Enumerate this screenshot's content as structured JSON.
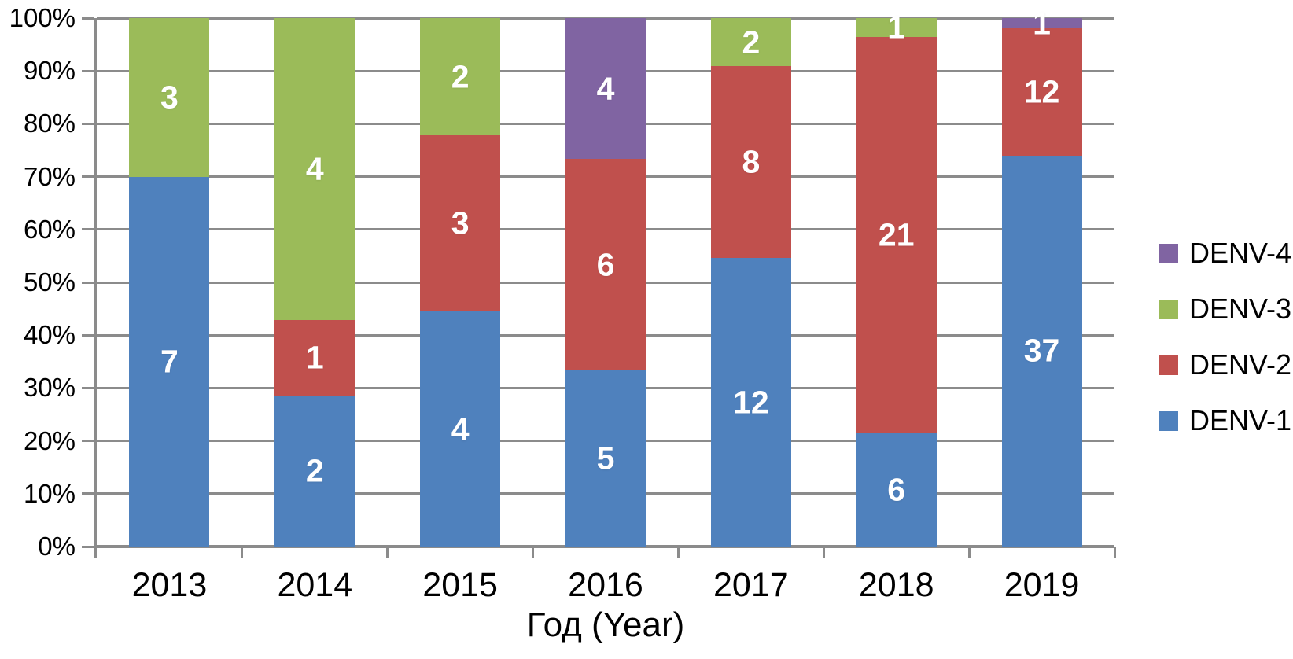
{
  "chart_data": {
    "type": "bar",
    "variant": "100%-stacked-column",
    "title": "",
    "xlabel": "Год (Year)",
    "ylabel": "",
    "categories": [
      "2013",
      "2014",
      "2015",
      "2016",
      "2017",
      "2018",
      "2019"
    ],
    "series": [
      {
        "name": "DENV-1",
        "color": "#4F81BD",
        "values": [
          7,
          2,
          4,
          5,
          12,
          6,
          37
        ]
      },
      {
        "name": "DENV-2",
        "color": "#C0504D",
        "values": [
          0,
          1,
          3,
          6,
          8,
          21,
          12
        ]
      },
      {
        "name": "DENV-3",
        "color": "#9BBB59",
        "values": [
          3,
          4,
          2,
          0,
          2,
          1,
          0
        ]
      },
      {
        "name": "DENV-4",
        "color": "#8064A2",
        "values": [
          0,
          0,
          0,
          4,
          0,
          0,
          1
        ]
      }
    ],
    "y_ticks": [
      "0%",
      "10%",
      "20%",
      "30%",
      "40%",
      "50%",
      "60%",
      "70%",
      "80%",
      "90%",
      "100%"
    ],
    "ylim": [
      0,
      1
    ],
    "grid": true,
    "legend_position": "right",
    "legend_order": [
      "DENV-4",
      "DENV-3",
      "DENV-2",
      "DENV-1"
    ],
    "axis_color": "#8B8B8B",
    "gridline_color": "#8B8B8B",
    "value_label_color": "#FFFFFF"
  }
}
